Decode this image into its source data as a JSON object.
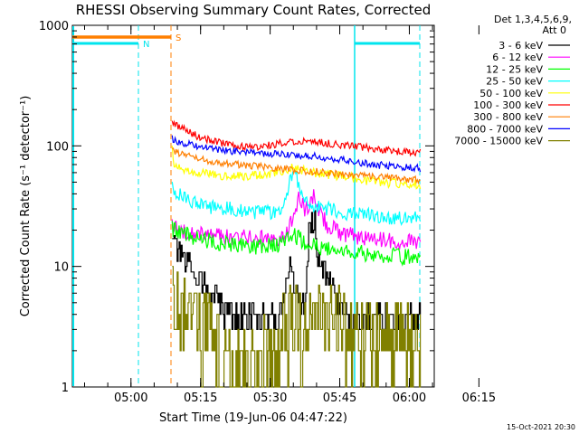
{
  "chart_data": {
    "type": "line",
    "title": "RHESSI Observing Summary Count Rates, Corrected",
    "xlabel": "Start Time (19-Jun-06 04:47:22)",
    "ylabel": "Corrected Count Rate (s⁻¹ detector⁻¹)",
    "yscale": "log",
    "ylim": [
      1,
      1000
    ],
    "y_tick_labels": [
      "1",
      "10",
      "100",
      "1000"
    ],
    "x_range_minutes": [
      0,
      78
    ],
    "x_tick_labels": [
      "05:00",
      "05:15",
      "05:30",
      "05:45",
      "06:00",
      "06:15"
    ],
    "x_tick_minutes": [
      12.63,
      27.63,
      42.63,
      57.63,
      72.63,
      87.63
    ],
    "info_lines": [
      "Det 1,3,4,5,6,9,",
      "Att 0"
    ],
    "legend_position": "top-right",
    "footer": "15-Oct-2021 20:30",
    "markers": [
      {
        "label": "N",
        "color": "#00e5ee"
      },
      {
        "label": "S",
        "color": "#ff7f00"
      }
    ],
    "series": [
      {
        "name": "3 - 6 keV",
        "color": "#000000",
        "x": [
          21.5,
          22,
          24,
          26,
          28,
          30,
          33,
          37,
          40,
          43,
          45,
          46,
          47,
          48,
          49,
          50,
          51,
          52,
          53,
          55,
          57,
          60,
          63,
          66,
          70,
          73,
          75
        ],
        "y": [
          20,
          14,
          11,
          9.5,
          7.5,
          5.5,
          4.3,
          3.7,
          3.7,
          3.7,
          4.5,
          8,
          10,
          6,
          5,
          4.5,
          20,
          26,
          12,
          8,
          5,
          4,
          3.7,
          3.7,
          3.7,
          3.7,
          3.7
        ]
      },
      {
        "name": "6 - 12 keV",
        "color": "#ff00ff",
        "x": [
          21.5,
          22,
          24,
          27,
          30,
          35,
          40,
          44,
          46,
          47,
          48,
          49,
          50,
          51,
          52,
          53,
          55,
          58,
          62,
          66,
          70,
          75
        ],
        "y": [
          22,
          21,
          20,
          19,
          18,
          17.5,
          17,
          17,
          18,
          22,
          30,
          38,
          30,
          32,
          40,
          30,
          22,
          19,
          17.5,
          16.5,
          16,
          16
        ]
      },
      {
        "name": "12 - 25 keV",
        "color": "#00ff00",
        "x": [
          21.5,
          22,
          24,
          27,
          30,
          35,
          40,
          44,
          46,
          48,
          50,
          52,
          55,
          58,
          62,
          66,
          70,
          75
        ],
        "y": [
          21,
          20,
          19,
          17,
          16,
          15,
          14.5,
          15,
          17,
          18,
          16,
          15,
          14,
          13.5,
          13,
          12.5,
          12,
          12
        ]
      },
      {
        "name": "25 - 50 keV",
        "color": "#00ffff",
        "x": [
          21.5,
          22,
          24,
          27,
          30,
          35,
          40,
          44,
          46,
          47,
          48,
          49,
          50,
          52,
          55,
          58,
          62,
          66,
          70,
          75
        ],
        "y": [
          45,
          42,
          38,
          33,
          31,
          30,
          28,
          28,
          35,
          55,
          60,
          45,
          35,
          32,
          30,
          28,
          27,
          26,
          25,
          25
        ]
      },
      {
        "name": "50 - 100 keV",
        "color": "#ffff00",
        "x": [
          21.5,
          22,
          24,
          27,
          30,
          35,
          40,
          44,
          46,
          48,
          50,
          52,
          55,
          58,
          62,
          66,
          70,
          75
        ],
        "y": [
          95,
          70,
          65,
          60,
          58,
          56,
          57,
          60,
          63,
          67,
          62,
          60,
          58,
          56,
          53,
          50,
          49,
          48
        ]
      },
      {
        "name": "100 - 300 keV",
        "color": "#ff0000",
        "x": [
          21.5,
          22,
          24,
          27,
          30,
          35,
          40,
          45,
          50,
          55,
          60,
          65,
          70,
          75
        ],
        "y": [
          160,
          150,
          140,
          120,
          110,
          100,
          98,
          105,
          110,
          105,
          100,
          95,
          90,
          88
        ]
      },
      {
        "name": "300 - 800 keV",
        "color": "#ff7f00",
        "x": [
          21.5,
          22,
          24,
          27,
          30,
          35,
          40,
          45,
          50,
          55,
          60,
          65,
          70,
          75
        ],
        "y": [
          95,
          90,
          85,
          78,
          75,
          70,
          68,
          65,
          62,
          60,
          57,
          55,
          54,
          52
        ]
      },
      {
        "name": "800 - 7000 keV",
        "color": "#0000ff",
        "x": [
          21.5,
          22,
          24,
          27,
          30,
          35,
          40,
          45,
          50,
          55,
          60,
          65,
          70,
          75
        ],
        "y": [
          115,
          110,
          105,
          100,
          95,
          90,
          87,
          85,
          83,
          80,
          75,
          70,
          67,
          65
        ]
      },
      {
        "name": "7000 - 15000 keV",
        "color": "#808000",
        "x": [
          21.5,
          22,
          24,
          26,
          28,
          30,
          32,
          35,
          38,
          40,
          42,
          44,
          46,
          48,
          50,
          52,
          55,
          58,
          60,
          62,
          64,
          66,
          68,
          70,
          72,
          75
        ],
        "y": [
          6,
          5,
          4,
          3.5,
          3,
          2.7,
          2,
          1.5,
          1.2,
          1.4,
          2,
          2.5,
          3,
          3.2,
          3,
          3.5,
          3,
          3.2,
          3,
          2.8,
          2.7,
          2.6,
          2.5,
          2.5,
          2.5,
          2.5
        ]
      }
    ]
  }
}
